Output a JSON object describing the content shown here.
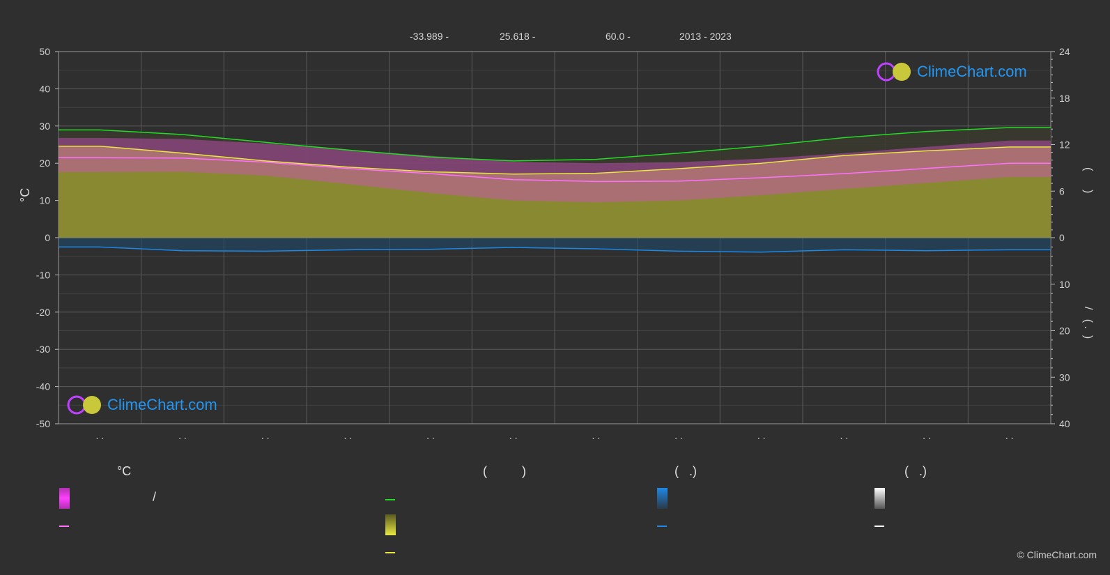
{
  "header": {
    "lat": "-33.989 -",
    "lon": "25.618 -",
    "elev": "60.0 -",
    "years": "2013 - 2023"
  },
  "brand": {
    "logo_text": "ClimeChart.com",
    "copyright": "© ClimeChart.com"
  },
  "legend": {
    "col1_head": "°C",
    "col2_head": "(          )",
    "col3_head": "(   .)",
    "col4_head": "(   .)",
    "col1_slash": "/"
  },
  "axes": {
    "left_title": "°C",
    "left_ticks": [
      "50",
      "40",
      "30",
      "20",
      "10",
      "0",
      "-10",
      "-20",
      "-30",
      "-40",
      "-50"
    ],
    "right_top_ticks": [
      "24",
      "18",
      "12",
      "6",
      "0"
    ],
    "right_bottom_ticks": [
      "10",
      "20",
      "30",
      "40"
    ],
    "right_title_upper": "(      )",
    "right_title_lower": "/   ( .  )",
    "month_labels": [
      ". .",
      ". .",
      ". .",
      ". .",
      ". .",
      ". .",
      ". .",
      ". .",
      ". .",
      ". .",
      ". .",
      ". ."
    ]
  },
  "colors": {
    "background": "#2f2f2f",
    "daylight": "#22dd22",
    "sunshine": "#e8e840",
    "sunshine_fill": "#8d8d33",
    "temp_max_fill": "#d050c0",
    "temp_mean": "#ff70ff",
    "precip": "#1e88e5",
    "snow": "#ffffff",
    "grid": "#707070"
  },
  "chart_data": {
    "type": "line",
    "x": [
      "Jan",
      "Feb",
      "Mar",
      "Apr",
      "May",
      "Jun",
      "Jul",
      "Aug",
      "Sep",
      "Oct",
      "Nov",
      "Dec"
    ],
    "y_left_range": [
      -50,
      50
    ],
    "y_right_upper_range": [
      0,
      24
    ],
    "y_right_lower_range": [
      0,
      40
    ],
    "grid": true,
    "series": [
      {
        "key": "daylight_hours",
        "values": [
          13.9,
          13.3,
          12.3,
          11.3,
          10.4,
          9.9,
          10.1,
          10.9,
          11.8,
          12.9,
          13.7,
          14.2
        ]
      },
      {
        "key": "sunshine_hours",
        "values": [
          11.8,
          10.9,
          9.9,
          9.1,
          8.5,
          8.2,
          8.3,
          8.9,
          9.6,
          10.6,
          11.2,
          11.7
        ]
      },
      {
        "key": "temp_mean_c",
        "values": [
          21.5,
          21.4,
          20.3,
          18.6,
          17.2,
          15.6,
          15.1,
          15.2,
          16.1,
          17.2,
          18.6,
          20.0
        ]
      },
      {
        "key": "temp_max_c",
        "values": [
          26.8,
          26.5,
          25.3,
          23.6,
          22.0,
          20.4,
          20.0,
          20.3,
          21.2,
          22.7,
          24.4,
          26.1
        ]
      },
      {
        "key": "temp_min_c",
        "values": [
          17.6,
          17.7,
          16.7,
          14.4,
          12.0,
          10.0,
          9.5,
          10.0,
          11.4,
          13.1,
          14.7,
          16.3
        ]
      },
      {
        "key": "precip_mm",
        "values": [
          2.0,
          2.8,
          2.9,
          2.6,
          2.5,
          2.1,
          2.4,
          2.9,
          3.1,
          2.6,
          2.8,
          2.6
        ]
      }
    ]
  }
}
